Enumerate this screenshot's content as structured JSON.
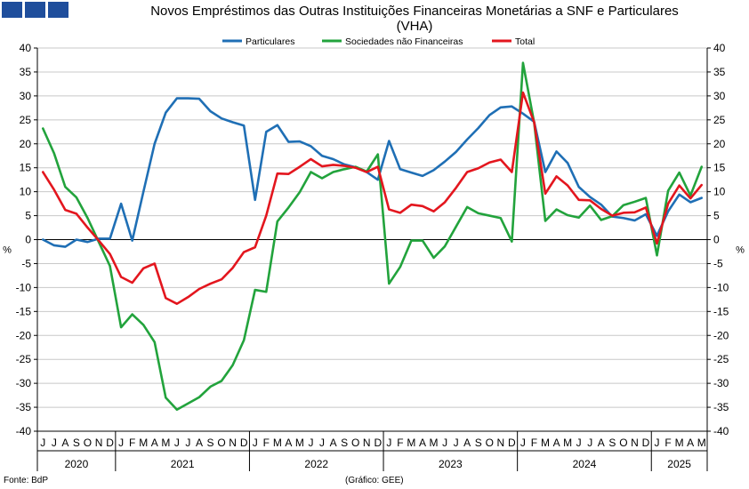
{
  "header": {
    "title_line1": "Novos Empréstimos das Outras Instituições Financeiras Monetárias a SNF e Particulares",
    "title_line2": "(VHA)"
  },
  "footer": {
    "source": "Fonte: BdP",
    "credit": "(Gráfico: GEE)"
  },
  "chart_data": {
    "type": "line",
    "title": "Novos Empréstimos das Outras Instituições Financeiras Monetárias a SNF e Particulares (VHA)",
    "ylabel_left": "%",
    "ylabel_right": "%",
    "ylim": [
      -40,
      40
    ],
    "yticks": [
      -40,
      -35,
      -30,
      -25,
      -20,
      -15,
      -10,
      -5,
      0,
      5,
      10,
      15,
      20,
      25,
      30,
      35,
      40
    ],
    "grid": true,
    "legend_position": "top-center",
    "x": [
      "2020-06",
      "2020-07",
      "2020-08",
      "2020-09",
      "2020-10",
      "2020-11",
      "2020-12",
      "2021-01",
      "2021-02",
      "2021-03",
      "2021-04",
      "2021-05",
      "2021-06",
      "2021-07",
      "2021-08",
      "2021-09",
      "2021-10",
      "2021-11",
      "2021-12",
      "2022-01",
      "2022-02",
      "2022-03",
      "2022-04",
      "2022-05",
      "2022-06",
      "2022-07",
      "2022-08",
      "2022-09",
      "2022-10",
      "2022-11",
      "2022-12",
      "2023-01",
      "2023-02",
      "2023-03",
      "2023-04",
      "2023-05",
      "2023-06",
      "2023-07",
      "2023-08",
      "2023-09",
      "2023-10",
      "2023-11",
      "2023-12",
      "2024-01",
      "2024-02",
      "2024-03",
      "2024-04",
      "2024-05",
      "2024-06",
      "2024-07",
      "2024-08",
      "2024-09",
      "2024-10",
      "2024-11",
      "2024-12",
      "2025-01",
      "2025-02",
      "2025-03",
      "2025-04",
      "2025-05"
    ],
    "month_labels": [
      "J",
      "J",
      "A",
      "S",
      "O",
      "N",
      "D",
      "J",
      "F",
      "M",
      "A",
      "M",
      "J",
      "J",
      "A",
      "S",
      "O",
      "N",
      "D",
      "J",
      "F",
      "M",
      "A",
      "M",
      "J",
      "J",
      "A",
      "S",
      "O",
      "N",
      "D",
      "J",
      "F",
      "M",
      "A",
      "M",
      "J",
      "J",
      "A",
      "S",
      "O",
      "N",
      "D",
      "J",
      "F",
      "M",
      "A",
      "M",
      "J",
      "J",
      "A",
      "S",
      "O",
      "N",
      "D",
      "J",
      "F",
      "M",
      "A",
      "M"
    ],
    "year_labels": [
      {
        "label": "2020",
        "start": 0,
        "end": 6
      },
      {
        "label": "2021",
        "start": 7,
        "end": 18
      },
      {
        "label": "2022",
        "start": 19,
        "end": 30
      },
      {
        "label": "2023",
        "start": 31,
        "end": 42
      },
      {
        "label": "2024",
        "start": 43,
        "end": 54
      },
      {
        "label": "2025",
        "start": 55,
        "end": 59
      }
    ],
    "series": [
      {
        "name": "Particulares",
        "color": "#1f6fb5",
        "values": [
          0,
          -1.2,
          -1.5,
          0,
          -0.5,
          0.2,
          0.2,
          7.5,
          -0.2,
          10,
          20,
          26.5,
          29.5,
          29.5,
          29.4,
          26.8,
          25.3,
          24.5,
          23.8,
          8.3,
          22.5,
          23.9,
          20.4,
          20.5,
          19.5,
          17.5,
          16.8,
          15.7,
          15.1,
          14.1,
          12.5,
          20.6,
          14.7,
          14.0,
          13.3,
          14.5,
          16.3,
          18.3,
          20.9,
          23.3,
          26.0,
          27.6,
          27.8,
          26.3,
          24.6,
          14.1,
          18.4,
          16.0,
          11.0,
          8.9,
          7.3,
          4.8,
          4.5,
          4.0,
          5.3,
          0.8,
          5.9,
          9.4,
          7.8,
          8.7
        ]
      },
      {
        "name": "Sociedades não Financeiras",
        "color": "#22a33c",
        "values": [
          23.2,
          18.0,
          11.0,
          8.8,
          4.5,
          -0.5,
          -5.5,
          -18.3,
          -15.6,
          -17.8,
          -21.4,
          -33.0,
          -35.5,
          -34.2,
          -32.9,
          -30.7,
          -29.5,
          -26.2,
          -21.0,
          -10.5,
          -10.9,
          3.8,
          6.7,
          9.9,
          14.1,
          12.8,
          14.1,
          14.7,
          15.2,
          14.2,
          17.8,
          -9.2,
          -5.7,
          -0.2,
          -0.2,
          -3.8,
          -1.4,
          2.7,
          6.8,
          5.5,
          5.0,
          4.5,
          -0.4,
          36.9,
          24.4,
          3.9,
          6.3,
          5.1,
          4.6,
          7.1,
          4.1,
          4.9,
          7.2,
          7.9,
          8.7,
          -3.3,
          10.2,
          14.0,
          9.2,
          15.2
        ]
      },
      {
        "name": "Total",
        "color": "#e3161e",
        "values": [
          14.1,
          10.4,
          6.2,
          5.4,
          2.5,
          -0.2,
          -3.0,
          -7.8,
          -9.0,
          -6.0,
          -5.0,
          -12.2,
          -13.4,
          -12.0,
          -10.3,
          -9.2,
          -8.3,
          -5.9,
          -2.6,
          -1.6,
          5.0,
          13.8,
          13.7,
          15.2,
          16.8,
          15.3,
          15.6,
          15.4,
          15.0,
          14.1,
          15.2,
          6.3,
          5.6,
          7.3,
          7.0,
          5.9,
          7.8,
          10.8,
          14.1,
          14.9,
          16.1,
          16.7,
          14.1,
          30.7,
          24.5,
          9.6,
          13.2,
          11.3,
          8.3,
          8.2,
          6.4,
          5.0,
          5.6,
          5.7,
          6.7,
          -0.8,
          7.5,
          11.3,
          8.6,
          11.4
        ]
      }
    ]
  }
}
